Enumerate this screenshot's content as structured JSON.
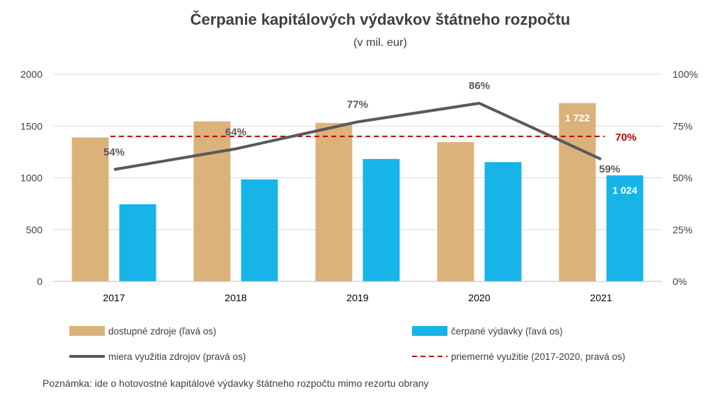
{
  "colors": {
    "available": "#dcb27b",
    "spent": "#17b4e8",
    "utilization": "#595959",
    "average": "#c00000",
    "grid": "#d9d9d9"
  },
  "chart_data": {
    "type": "bar",
    "title": "Čerpanie kapitálových výdavkov štátneho rozpočtu",
    "subtitle": "(v mil. eur)",
    "categories": [
      "2017",
      "2018",
      "2019",
      "2020",
      "2021"
    ],
    "ylim": [
      0,
      2000
    ],
    "yticks": [
      "2000",
      "1500",
      "1000",
      "500",
      "0"
    ],
    "ylim_right": [
      0,
      100
    ],
    "yticks_right": [
      "100%",
      "75%",
      "50%",
      "25%",
      "0%"
    ],
    "grid": true,
    "legend_position": "bottom",
    "series": [
      {
        "name": "dostupné zdroje (ľavá os)",
        "type": "bar",
        "axis": "left",
        "values": [
          1390,
          1545,
          1530,
          1345,
          1722
        ],
        "data_labels": [
          "",
          "",
          "",
          "",
          "1 722"
        ]
      },
      {
        "name": "čerpané výdavky (ľavá os)",
        "type": "bar",
        "axis": "left",
        "values": [
          745,
          985,
          1182,
          1152,
          1024
        ],
        "data_labels": [
          "",
          "",
          "",
          "",
          "1 024"
        ]
      },
      {
        "name": "miera využitia zdrojov (pravá os)",
        "type": "line",
        "axis": "right",
        "values": [
          54,
          64,
          77,
          86,
          59
        ],
        "data_labels": [
          "54%",
          "64%",
          "77%",
          "86%",
          "59%"
        ]
      },
      {
        "name": "priemerné využitie (2017-2020, pravá os)",
        "type": "line",
        "style": "dashed",
        "axis": "right",
        "values": [
          70,
          70,
          70,
          70,
          70
        ],
        "data_label": "70%"
      }
    ]
  },
  "note": "Poznámka: ide o hotovostné kapitálové výdavky štátneho rozpočtu mimo rezortu obrany"
}
